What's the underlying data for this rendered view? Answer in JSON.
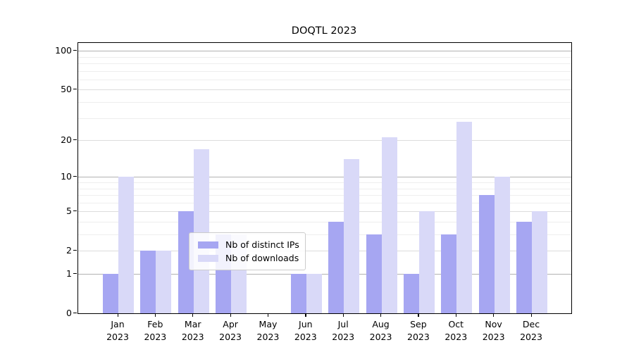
{
  "title": "DOQTL 2023",
  "chart_data": {
    "type": "bar",
    "title": "DOQTL 2023",
    "categories": [
      "Jan 2023",
      "Feb 2023",
      "Mar 2023",
      "Apr 2023",
      "May 2023",
      "Jun 2023",
      "Jul 2023",
      "Aug 2023",
      "Sep 2023",
      "Oct 2023",
      "Nov 2023",
      "Dec 2023"
    ],
    "series": [
      {
        "name": "Nb of distinct IPs",
        "color": "#a6a6f2",
        "values": [
          1,
          2,
          5,
          3,
          0,
          1,
          4,
          3,
          1,
          3,
          7,
          4
        ]
      },
      {
        "name": "Nb of downloads",
        "color": "#d9d9f8",
        "values": [
          10,
          2,
          17,
          3,
          0,
          1,
          14,
          21,
          5,
          28,
          10,
          5
        ]
      }
    ],
    "xlabel": "",
    "ylabel": "",
    "y_scale": "log1p",
    "ylim": [
      0,
      115
    ],
    "y_major_ticks": [
      0,
      1,
      2,
      5,
      10,
      20,
      50,
      100
    ],
    "y_decade_ticks": [
      1,
      10,
      100
    ],
    "y_minor_ticks": [
      3,
      4,
      6,
      7,
      8,
      9,
      30,
      40,
      60,
      70,
      80,
      90
    ],
    "grid": "horizontal-major-and-minor",
    "legend_position": "lower center"
  }
}
